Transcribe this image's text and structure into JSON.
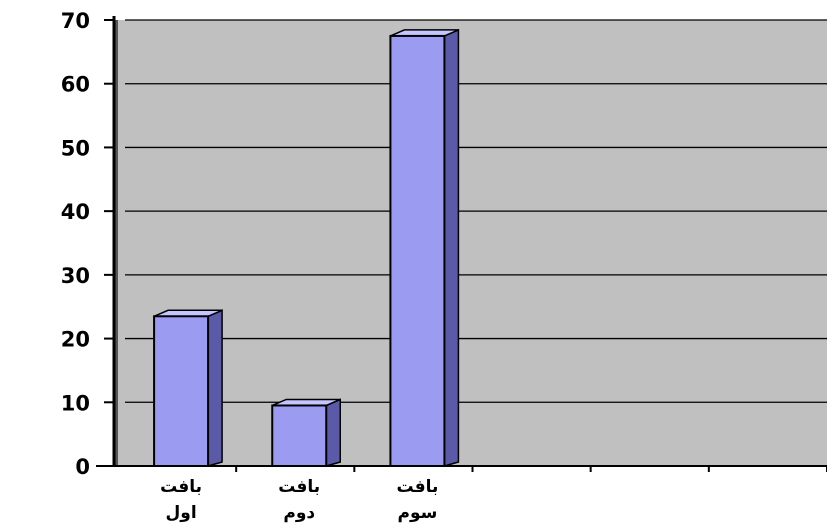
{
  "chart_data": {
    "type": "bar",
    "title": "",
    "xlabel": "",
    "ylabel": "",
    "ylim": [
      0,
      70
    ],
    "yticks": [
      0,
      10,
      20,
      30,
      40,
      50,
      60,
      70
    ],
    "categories": [
      [
        "بافت",
        "اول"
      ],
      [
        "بافت",
        "دوم"
      ],
      [
        "بافت",
        "سوم"
      ]
    ],
    "values": [
      23.5,
      9.5,
      67.5
    ],
    "empty_slots": 3,
    "grid": true,
    "legend": "none",
    "colors": {
      "bar_front": "#9b9bf2",
      "bar_side": "#5a5aa8",
      "bar_top": "#c5c5ff",
      "bar_outline": "#000000",
      "plot_background": "#c0c0c0",
      "gridline": "#000000"
    }
  }
}
